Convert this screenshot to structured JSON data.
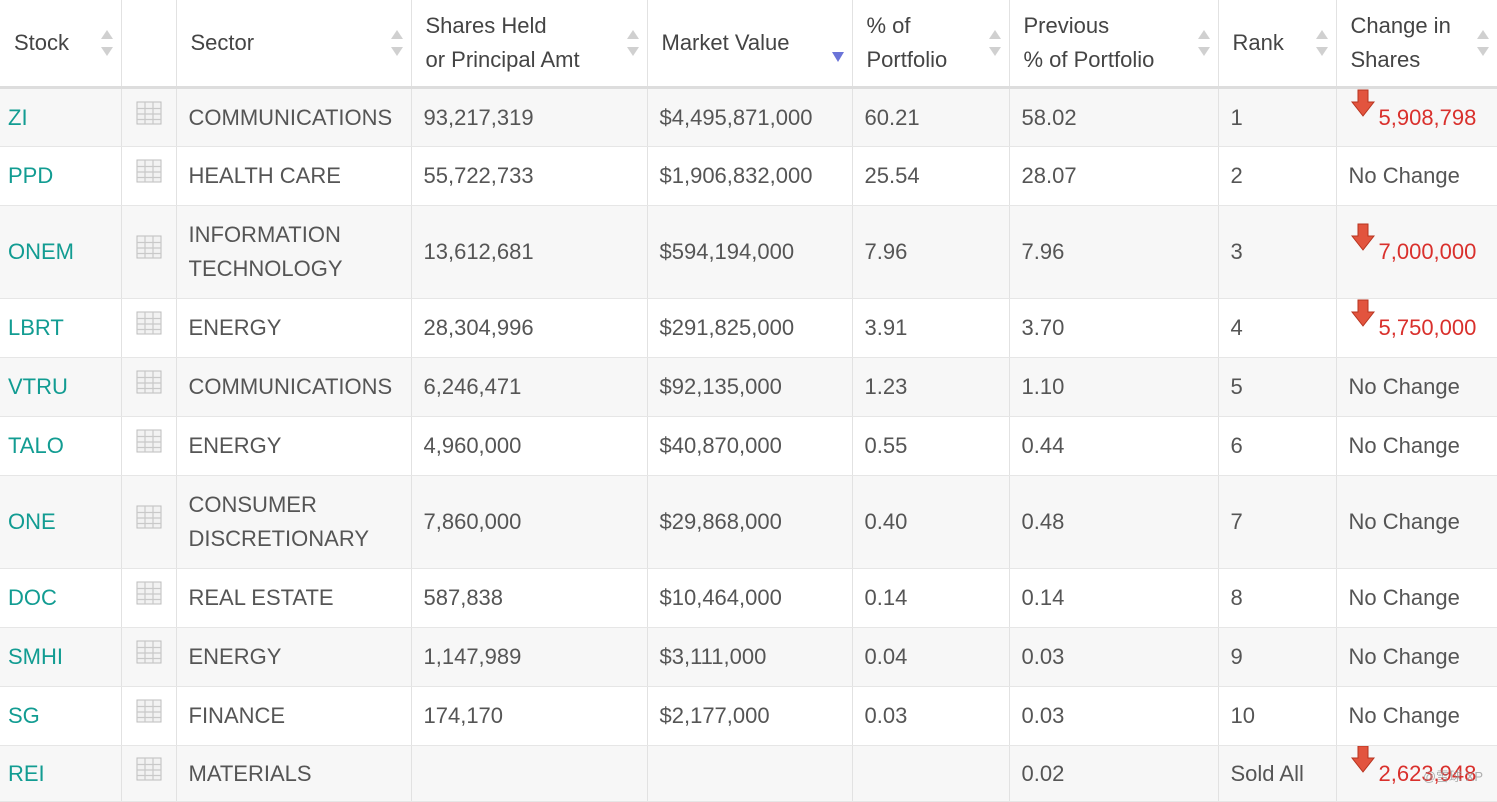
{
  "columns": {
    "stock": "Stock",
    "sector": "Sector",
    "shares_l1": "Shares Held",
    "shares_l2": "or Principal Amt",
    "market_value": "Market Value",
    "pct_l1": "% of",
    "pct_l2": "Portfolio",
    "prev_l1": "Previous",
    "prev_l2": "% of Portfolio",
    "rank": "Rank",
    "change_l1": "Change in",
    "change_l2": "Shares"
  },
  "rows": [
    {
      "ticker": "ZI",
      "sector": "COMMUNICATIONS",
      "shares": "93,217,319",
      "market_value": "$4,495,871,000",
      "pct": "60.21",
      "prev_pct": "58.02",
      "rank": "1",
      "change": "5,908,798",
      "change_dir": "down"
    },
    {
      "ticker": "PPD",
      "sector": "HEALTH CARE",
      "shares": "55,722,733",
      "market_value": "$1,906,832,000",
      "pct": "25.54",
      "prev_pct": "28.07",
      "rank": "2",
      "change": "No Change",
      "change_dir": "none"
    },
    {
      "ticker": "ONEM",
      "sector": "INFORMATION TECHNOLOGY",
      "shares": "13,612,681",
      "market_value": "$594,194,000",
      "pct": "7.96",
      "prev_pct": "7.96",
      "rank": "3",
      "change": "7,000,000",
      "change_dir": "down"
    },
    {
      "ticker": "LBRT",
      "sector": "ENERGY",
      "shares": "28,304,996",
      "market_value": "$291,825,000",
      "pct": "3.91",
      "prev_pct": "3.70",
      "rank": "4",
      "change": "5,750,000",
      "change_dir": "down"
    },
    {
      "ticker": "VTRU",
      "sector": "COMMUNICATIONS",
      "shares": "6,246,471",
      "market_value": "$92,135,000",
      "pct": "1.23",
      "prev_pct": "1.10",
      "rank": "5",
      "change": "No Change",
      "change_dir": "none"
    },
    {
      "ticker": "TALO",
      "sector": "ENERGY",
      "shares": "4,960,000",
      "market_value": "$40,870,000",
      "pct": "0.55",
      "prev_pct": "0.44",
      "rank": "6",
      "change": "No Change",
      "change_dir": "none"
    },
    {
      "ticker": "ONE",
      "sector": "CONSUMER DISCRETIONARY",
      "shares": "7,860,000",
      "market_value": "$29,868,000",
      "pct": "0.40",
      "prev_pct": "0.48",
      "rank": "7",
      "change": "No Change",
      "change_dir": "none"
    },
    {
      "ticker": "DOC",
      "sector": "REAL ESTATE",
      "shares": "587,838",
      "market_value": "$10,464,000",
      "pct": "0.14",
      "prev_pct": "0.14",
      "rank": "8",
      "change": "No Change",
      "change_dir": "none"
    },
    {
      "ticker": "SMHI",
      "sector": "ENERGY",
      "shares": "1,147,989",
      "market_value": "$3,111,000",
      "pct": "0.04",
      "prev_pct": "0.03",
      "rank": "9",
      "change": "No Change",
      "change_dir": "none"
    },
    {
      "ticker": "SG",
      "sector": "FINANCE",
      "shares": "174,170",
      "market_value": "$2,177,000",
      "pct": "0.03",
      "prev_pct": "0.03",
      "rank": "10",
      "change": "No Change",
      "change_dir": "none"
    },
    {
      "ticker": "REI",
      "sector": "MATERIALS",
      "shares": "",
      "market_value": "",
      "pct": "",
      "prev_pct": "0.02",
      "rank": "Sold All",
      "change": "2,623,948",
      "change_dir": "down"
    }
  ],
  "colors": {
    "ticker": "#129c92",
    "change_down": "#d9302c",
    "sort_active": "#6b74d8"
  },
  "icons": {
    "row_detail": "grid-table-icon",
    "change_down": "arrow-down-icon"
  },
  "sort": {
    "column": "market_value",
    "direction": "desc"
  },
  "watermark": "@雪球 XP"
}
